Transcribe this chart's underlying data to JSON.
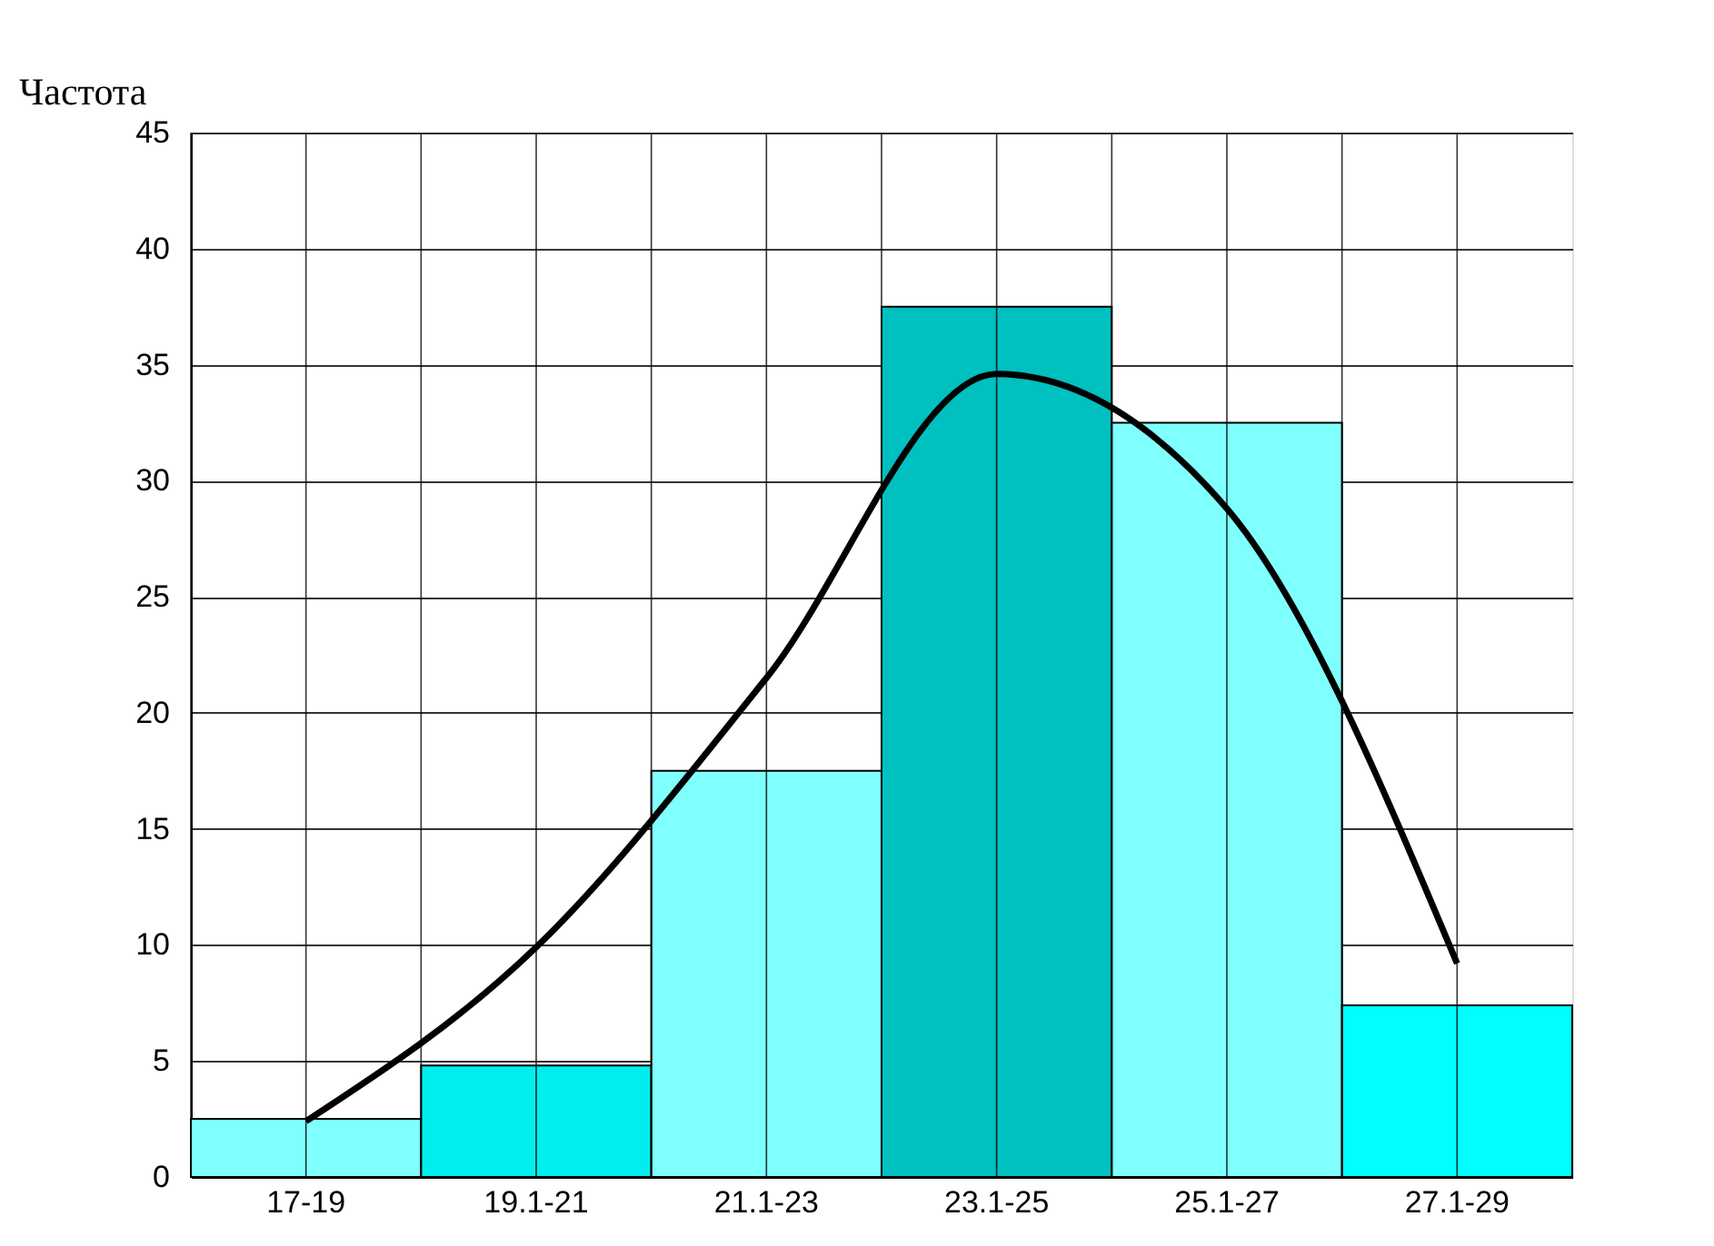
{
  "chart_data": {
    "type": "bar",
    "ylabel": "Частота",
    "categories": [
      "17-19",
      "19.1-21",
      "21.1-23",
      "23.1-25",
      "25.1-27",
      "27.1-29"
    ],
    "values": [
      2.5,
      4.8,
      17.5,
      37.5,
      32.5,
      7.4
    ],
    "colors": [
      "#80ffff",
      "#00eeee",
      "#80ffff",
      "#00c0c0",
      "#80ffff",
      "#00ffff"
    ],
    "series": [
      {
        "type": "line",
        "color": "#000000",
        "values": [
          2.4,
          9.9,
          21.5,
          34.6,
          28.8,
          9.2
        ]
      }
    ],
    "ylim": [
      0,
      45
    ],
    "yticks": [
      0,
      5,
      10,
      15,
      20,
      25,
      30,
      35,
      40,
      45
    ],
    "grid": true,
    "line_style": "solid",
    "marker": "none"
  }
}
